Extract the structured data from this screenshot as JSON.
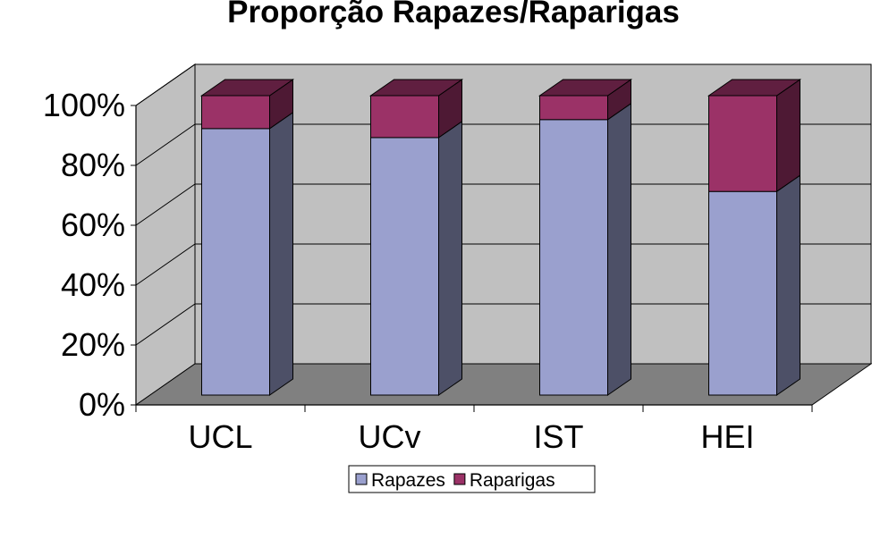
{
  "chart_data": {
    "type": "bar",
    "stacked": true,
    "percent_stacked": true,
    "three_d": true,
    "title": "Proporção Rapazes/Raparigas",
    "xlabel": "",
    "ylabel": "",
    "categories": [
      "UCL",
      "UCv",
      "IST",
      "HEI"
    ],
    "series": [
      {
        "name": "Rapazes",
        "values": [
          89,
          86,
          92,
          68
        ],
        "color": "#9aa0ce"
      },
      {
        "name": "Raparigas",
        "values": [
          11,
          14,
          8,
          32
        ],
        "color": "#9b3267"
      }
    ],
    "y_ticks": [
      "0%",
      "20%",
      "40%",
      "60%",
      "80%",
      "100%"
    ],
    "ylim": [
      0,
      100
    ],
    "grid": true,
    "legend_position": "bottom"
  }
}
